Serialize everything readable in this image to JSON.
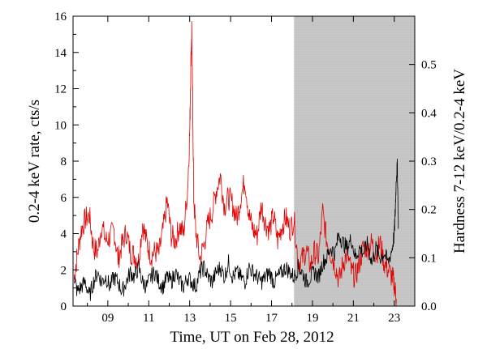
{
  "chart_data": {
    "type": "line",
    "xlabel": "Time, UT on Feb 28, 2012",
    "ylabel_left": "0.2-4 keV rate, cts/s",
    "ylabel_right": "Hardness 7-12 keV/0.2-4 keV",
    "xlim": [
      7.3,
      24.0
    ],
    "ylim_left": [
      0,
      16
    ],
    "ylim_right": [
      0,
      0.6
    ],
    "x_ticks": [
      9,
      11,
      13,
      15,
      17,
      19,
      21,
      23
    ],
    "x_tick_labels": [
      "09",
      "11",
      "13",
      "15",
      "17",
      "19",
      "21",
      "23"
    ],
    "y_left_ticks": [
      0,
      2,
      4,
      6,
      8,
      10,
      12,
      14,
      16
    ],
    "y_left_tick_labels": [
      "0",
      "2",
      "4",
      "6",
      "8",
      "10",
      "12",
      "14",
      "16"
    ],
    "y_right_ticks": [
      0.0,
      0.1,
      0.2,
      0.3,
      0.4,
      0.5
    ],
    "y_right_tick_labels": [
      "0.0",
      "0.1",
      "0.2",
      "0.3",
      "0.4",
      "0.5"
    ],
    "shaded_region": {
      "x_start": 18.1,
      "x_end": 24.0,
      "color": "#c8c8c8"
    },
    "series": [
      {
        "axis": "left",
        "color": "#e00000",
        "x": [
          7.35,
          7.5,
          7.7,
          7.9,
          8.1,
          8.3,
          8.5,
          8.7,
          8.9,
          9.1,
          9.3,
          9.5,
          9.7,
          9.9,
          10.1,
          10.3,
          10.5,
          10.7,
          10.9,
          11.1,
          11.3,
          11.5,
          11.7,
          11.9,
          12.1,
          12.3,
          12.5,
          12.7,
          12.9,
          13.0,
          13.05,
          13.1,
          13.15,
          13.2,
          13.3,
          13.5,
          13.7,
          13.9,
          14.1,
          14.3,
          14.5,
          14.7,
          14.9,
          15.1,
          15.3,
          15.5,
          15.7,
          15.9,
          16.1,
          16.3,
          16.5,
          16.7,
          16.9,
          17.1,
          17.3,
          17.5,
          17.7,
          17.9,
          18.1,
          18.3,
          18.5,
          18.7,
          18.9,
          19.1,
          19.3,
          19.5,
          19.7,
          19.9,
          20.1,
          20.3,
          20.5,
          20.7,
          20.9,
          21.1,
          21.3,
          21.5,
          21.7,
          21.9,
          22.1,
          22.3,
          22.5,
          22.7,
          22.9,
          23.0,
          23.1
        ],
        "y": [
          1.5,
          2.8,
          4.2,
          4.8,
          5.0,
          3.2,
          3.0,
          4.5,
          3.6,
          3.8,
          4.2,
          2.6,
          3.4,
          4.1,
          3.0,
          2.8,
          2.5,
          4.6,
          3.5,
          2.8,
          3.0,
          2.9,
          4.2,
          5.8,
          3.9,
          3.6,
          4.4,
          4.0,
          6.5,
          9.5,
          13.0,
          15.4,
          11.0,
          6.0,
          4.1,
          2.6,
          3.4,
          4.6,
          5.2,
          6.4,
          7.2,
          5.5,
          6.0,
          5.6,
          4.8,
          6.0,
          7.0,
          5.0,
          4.2,
          3.9,
          5.6,
          4.6,
          4.2,
          5.0,
          3.6,
          4.4,
          4.9,
          4.2,
          4.8,
          2.4,
          2.6,
          3.1,
          2.2,
          3.0,
          2.7,
          5.2,
          3.6,
          2.9,
          2.3,
          1.4,
          2.4,
          2.9,
          1.9,
          1.6,
          2.4,
          3.3,
          3.2,
          3.5,
          2.8,
          3.5,
          2.4,
          2.0,
          1.6,
          1.2,
          0.4
        ]
      },
      {
        "axis": "right",
        "color": "#000000",
        "x": [
          7.35,
          7.5,
          7.7,
          7.9,
          8.1,
          8.3,
          8.5,
          8.7,
          8.9,
          9.1,
          9.3,
          9.5,
          9.7,
          9.9,
          10.1,
          10.3,
          10.5,
          10.7,
          10.9,
          11.1,
          11.3,
          11.5,
          11.7,
          11.9,
          12.1,
          12.3,
          12.5,
          12.7,
          12.9,
          13.1,
          13.3,
          13.5,
          13.7,
          13.9,
          14.1,
          14.3,
          14.5,
          14.7,
          14.9,
          15.1,
          15.3,
          15.5,
          15.7,
          15.9,
          16.1,
          16.3,
          16.5,
          16.7,
          16.9,
          17.1,
          17.3,
          17.5,
          17.7,
          17.9,
          18.1,
          18.3,
          18.5,
          18.7,
          18.9,
          19.1,
          19.3,
          19.5,
          19.7,
          19.9,
          20.1,
          20.3,
          20.5,
          20.7,
          20.9,
          21.1,
          21.3,
          21.5,
          21.7,
          21.9,
          22.1,
          22.3,
          22.5,
          22.7,
          22.9,
          23.0,
          23.05,
          23.1,
          23.15,
          23.2
        ],
        "y": [
          0.06,
          0.03,
          0.04,
          0.05,
          0.02,
          0.05,
          0.07,
          0.05,
          0.06,
          0.04,
          0.06,
          0.05,
          0.03,
          0.05,
          0.07,
          0.06,
          0.08,
          0.05,
          0.04,
          0.06,
          0.07,
          0.05,
          0.04,
          0.06,
          0.05,
          0.07,
          0.05,
          0.04,
          0.06,
          0.05,
          0.04,
          0.07,
          0.08,
          0.06,
          0.05,
          0.07,
          0.08,
          0.06,
          0.09,
          0.06,
          0.07,
          0.06,
          0.05,
          0.08,
          0.07,
          0.06,
          0.05,
          0.06,
          0.07,
          0.05,
          0.06,
          0.07,
          0.08,
          0.07,
          0.06,
          0.08,
          0.07,
          0.05,
          0.06,
          0.07,
          0.06,
          0.09,
          0.1,
          0.12,
          0.11,
          0.15,
          0.13,
          0.12,
          0.14,
          0.1,
          0.12,
          0.11,
          0.13,
          0.09,
          0.12,
          0.1,
          0.11,
          0.09,
          0.12,
          0.15,
          0.2,
          0.27,
          0.29,
          0.16
        ]
      }
    ]
  }
}
